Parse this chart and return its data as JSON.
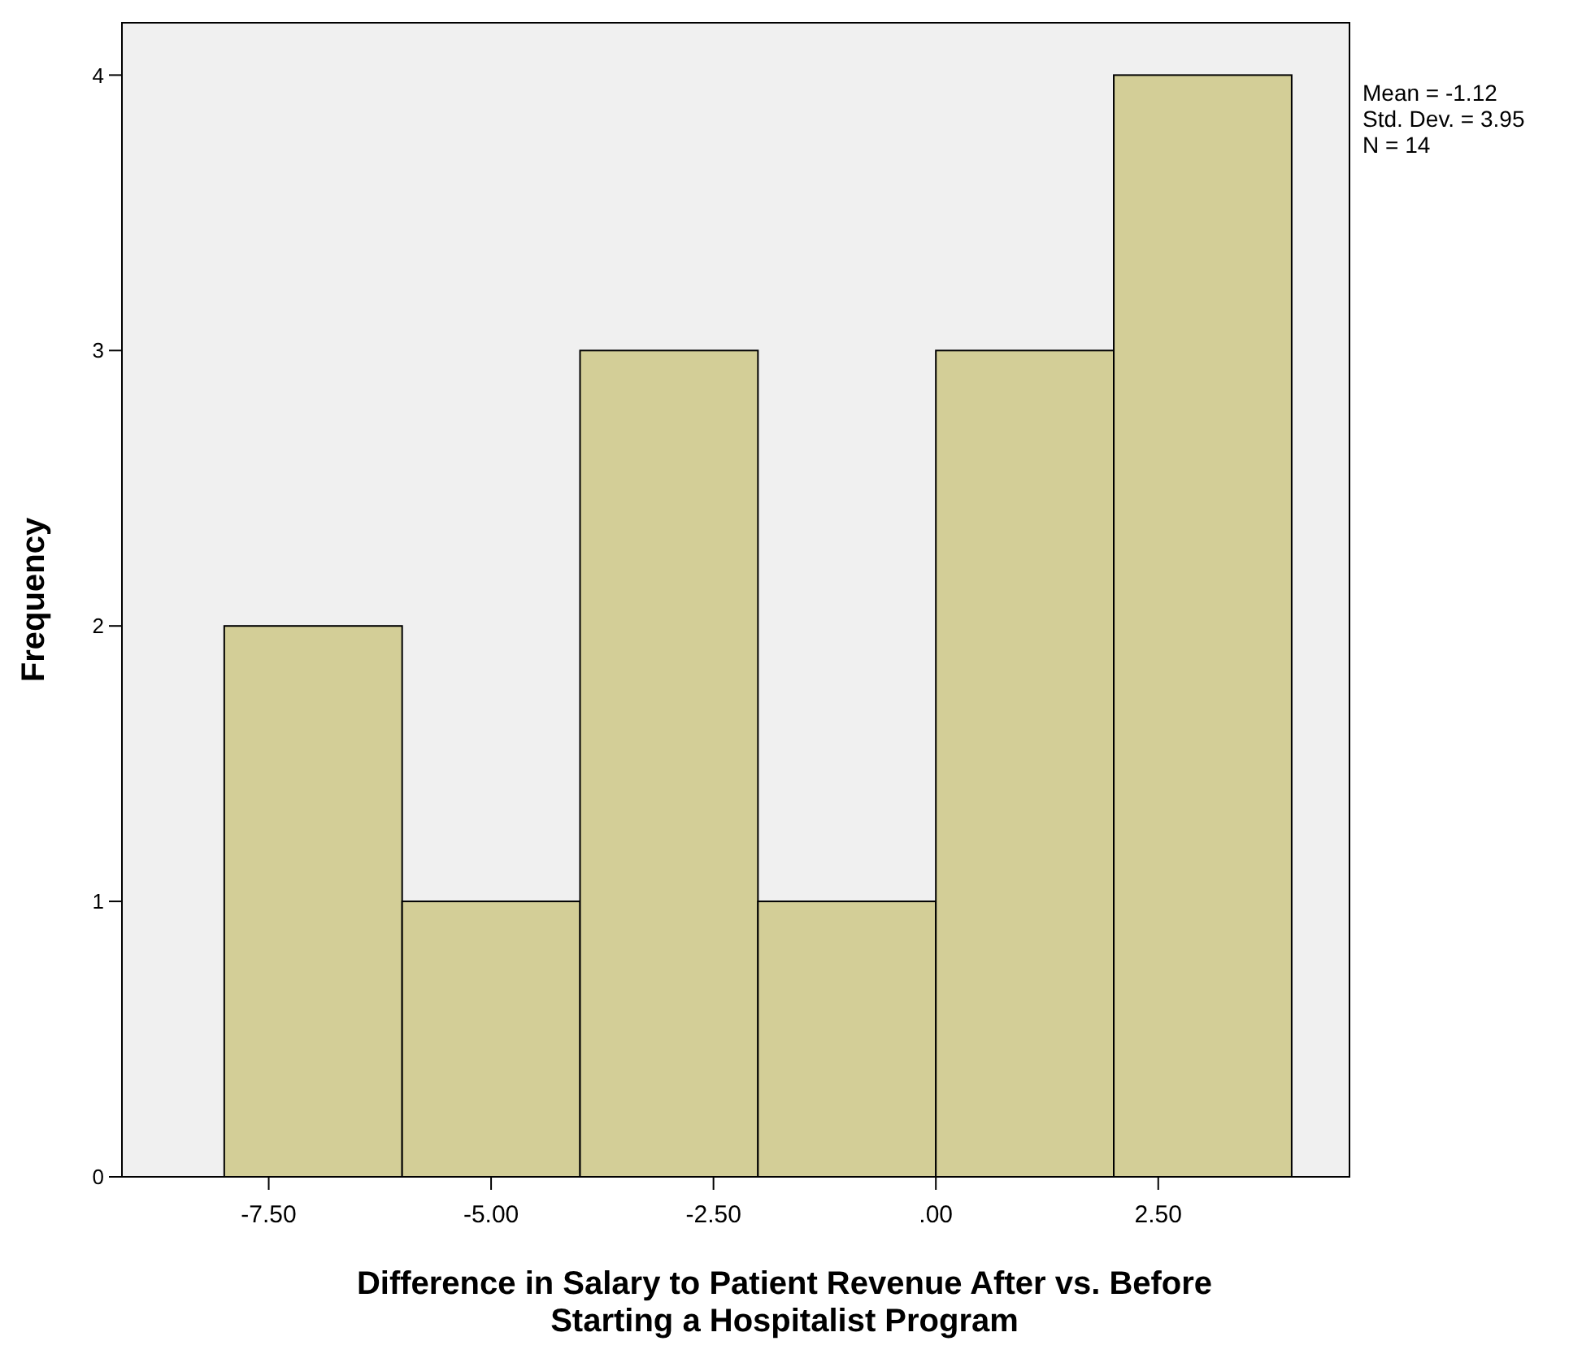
{
  "chart_data": {
    "type": "histogram",
    "xlabel": "Difference in Salary to Patient Revenue After vs. Before\nStarting a Hospitalist Program",
    "ylabel": "Frequency",
    "bins": [
      -8,
      -6,
      -4,
      -2,
      0,
      2,
      4
    ],
    "values": [
      2,
      1,
      3,
      1,
      3,
      4
    ],
    "color": "#d3ce97",
    "xlim": [
      -9.15,
      4.65
    ],
    "xticks": [
      {
        "value": -7.5,
        "label": "-7.50"
      },
      {
        "value": -5,
        "label": "-5.00"
      },
      {
        "value": -2.5,
        "label": "-2.50"
      },
      {
        "value": 0,
        "label": ".00"
      },
      {
        "value": 2.5,
        "label": "2.50"
      }
    ],
    "ylim": [
      0,
      4.19
    ],
    "yticks": [
      0,
      1,
      2,
      3,
      4
    ],
    "annotations": [
      "Mean = -1.12\nStd. Dev. = 3.95\nN = 14"
    ],
    "grid": false
  }
}
